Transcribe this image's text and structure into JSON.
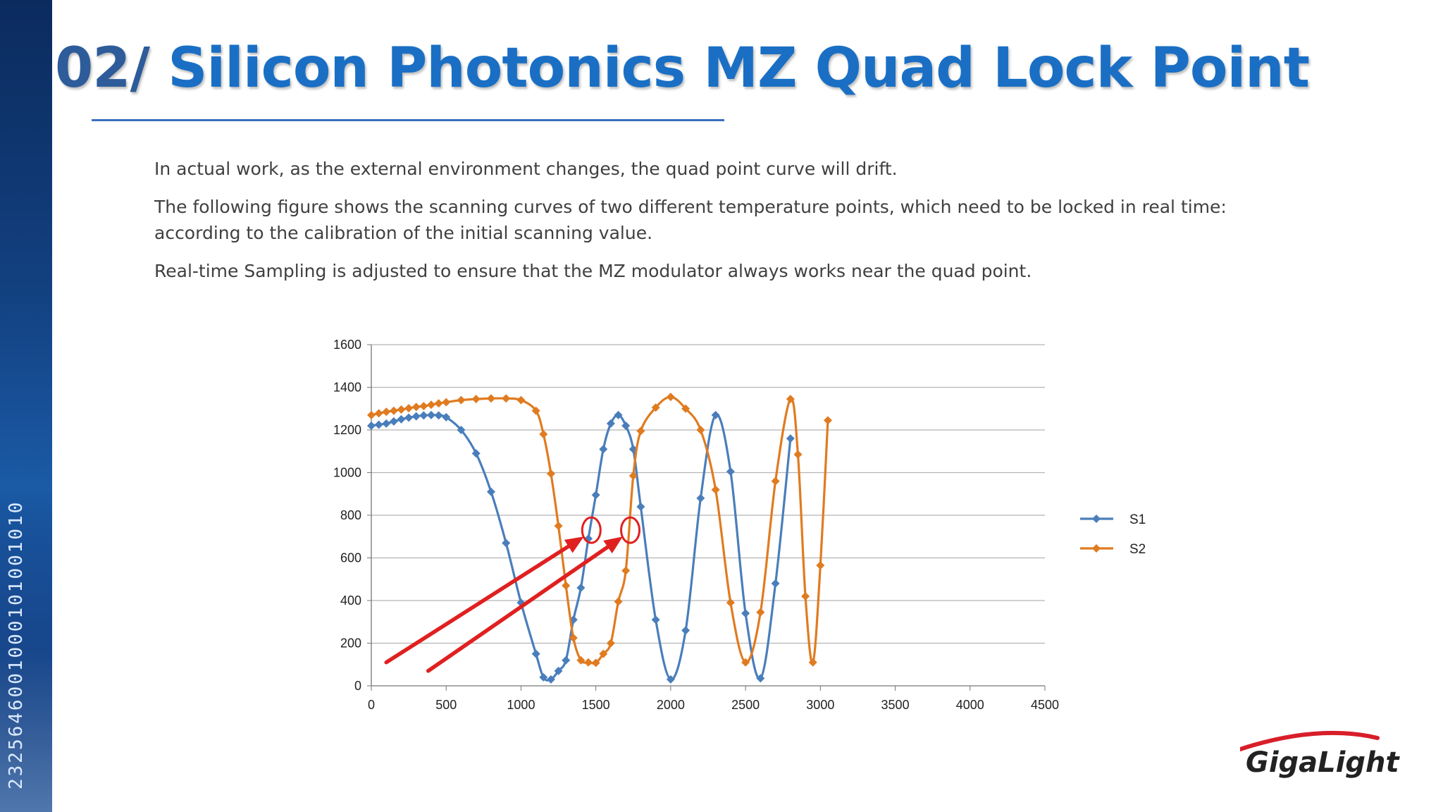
{
  "slide": {
    "title_number": "02/",
    "title_text": "Silicon Photonics MZ Quad Lock Point",
    "paragraphs": [
      "In actual work, as the external environment changes, the quad point curve will drift.",
      "The following figure shows the scanning curves of two different temperature points, which need to be locked in real time: according to the calibration of the initial scanning value.",
      "Real-time Sampling is adjusted to ensure that the MZ modulator always works near the quad point."
    ],
    "logo_text": "GigaLight",
    "side_digits": "2325646001000101001010",
    "colors": {
      "title_blue": "#1a6fc4",
      "title_number": "#2e5c9a",
      "rule": "#3a6fbf",
      "arrow_red": "#e02020"
    }
  },
  "chart_data": {
    "type": "line",
    "title": "",
    "xlabel": "",
    "ylabel": "",
    "xlim": [
      0,
      4500
    ],
    "ylim": [
      0,
      1600
    ],
    "xticks": [
      0,
      500,
      1000,
      1500,
      2000,
      2500,
      3000,
      3500,
      4000,
      4500
    ],
    "yticks": [
      0,
      200,
      400,
      600,
      800,
      1000,
      1200,
      1400,
      1600
    ],
    "grid": "horizontal",
    "legend_position": "right",
    "series": [
      {
        "name": "S1",
        "color": "#4a7ebb",
        "marker": "diamond",
        "points": [
          [
            0,
            1220
          ],
          [
            50,
            1225
          ],
          [
            100,
            1230
          ],
          [
            150,
            1240
          ],
          [
            200,
            1250
          ],
          [
            250,
            1258
          ],
          [
            300,
            1264
          ],
          [
            350,
            1268
          ],
          [
            400,
            1270
          ],
          [
            450,
            1268
          ],
          [
            500,
            1260
          ],
          [
            600,
            1200
          ],
          [
            700,
            1090
          ],
          [
            800,
            910
          ],
          [
            900,
            670
          ],
          [
            1000,
            390
          ],
          [
            1100,
            150
          ],
          [
            1150,
            40
          ],
          [
            1200,
            30
          ],
          [
            1250,
            70
          ],
          [
            1300,
            120
          ],
          [
            1350,
            310
          ],
          [
            1400,
            460
          ],
          [
            1450,
            690
          ],
          [
            1500,
            895
          ],
          [
            1550,
            1110
          ],
          [
            1600,
            1230
          ],
          [
            1650,
            1270
          ],
          [
            1700,
            1220
          ],
          [
            1750,
            1110
          ],
          [
            1800,
            840
          ],
          [
            1900,
            310
          ],
          [
            2000,
            30
          ],
          [
            2100,
            260
          ],
          [
            2200,
            880
          ],
          [
            2300,
            1270
          ],
          [
            2400,
            1005
          ],
          [
            2500,
            340
          ],
          [
            2600,
            35
          ],
          [
            2700,
            480
          ],
          [
            2800,
            1160
          ]
        ]
      },
      {
        "name": "S2",
        "color": "#e07b20",
        "marker": "diamond",
        "points": [
          [
            0,
            1270
          ],
          [
            50,
            1278
          ],
          [
            100,
            1285
          ],
          [
            150,
            1290
          ],
          [
            200,
            1296
          ],
          [
            250,
            1302
          ],
          [
            300,
            1308
          ],
          [
            350,
            1312
          ],
          [
            400,
            1318
          ],
          [
            450,
            1325
          ],
          [
            500,
            1330
          ],
          [
            600,
            1340
          ],
          [
            700,
            1345
          ],
          [
            800,
            1348
          ],
          [
            900,
            1348
          ],
          [
            1000,
            1340
          ],
          [
            1100,
            1290
          ],
          [
            1150,
            1180
          ],
          [
            1200,
            995
          ],
          [
            1250,
            750
          ],
          [
            1300,
            470
          ],
          [
            1350,
            225
          ],
          [
            1400,
            120
          ],
          [
            1450,
            110
          ],
          [
            1500,
            108
          ],
          [
            1550,
            150
          ],
          [
            1600,
            200
          ],
          [
            1650,
            395
          ],
          [
            1700,
            540
          ],
          [
            1750,
            985
          ],
          [
            1800,
            1195
          ],
          [
            1900,
            1305
          ],
          [
            2000,
            1355
          ],
          [
            2100,
            1300
          ],
          [
            2200,
            1200
          ],
          [
            2300,
            920
          ],
          [
            2400,
            390
          ],
          [
            2500,
            110
          ],
          [
            2600,
            345
          ],
          [
            2700,
            960
          ],
          [
            2800,
            1345
          ],
          [
            2850,
            1085
          ],
          [
            2900,
            420
          ],
          [
            2950,
            110
          ],
          [
            3000,
            565
          ],
          [
            3050,
            1245
          ]
        ]
      }
    ],
    "annotations": [
      {
        "type": "circle",
        "x": 1470,
        "y": 730
      },
      {
        "type": "circle",
        "x": 1730,
        "y": 730
      },
      {
        "type": "arrow",
        "from": [
          100,
          110
        ],
        "to": [
          1420,
          700
        ]
      },
      {
        "type": "arrow",
        "from": [
          380,
          70
        ],
        "to": [
          1680,
          700
        ]
      }
    ]
  }
}
